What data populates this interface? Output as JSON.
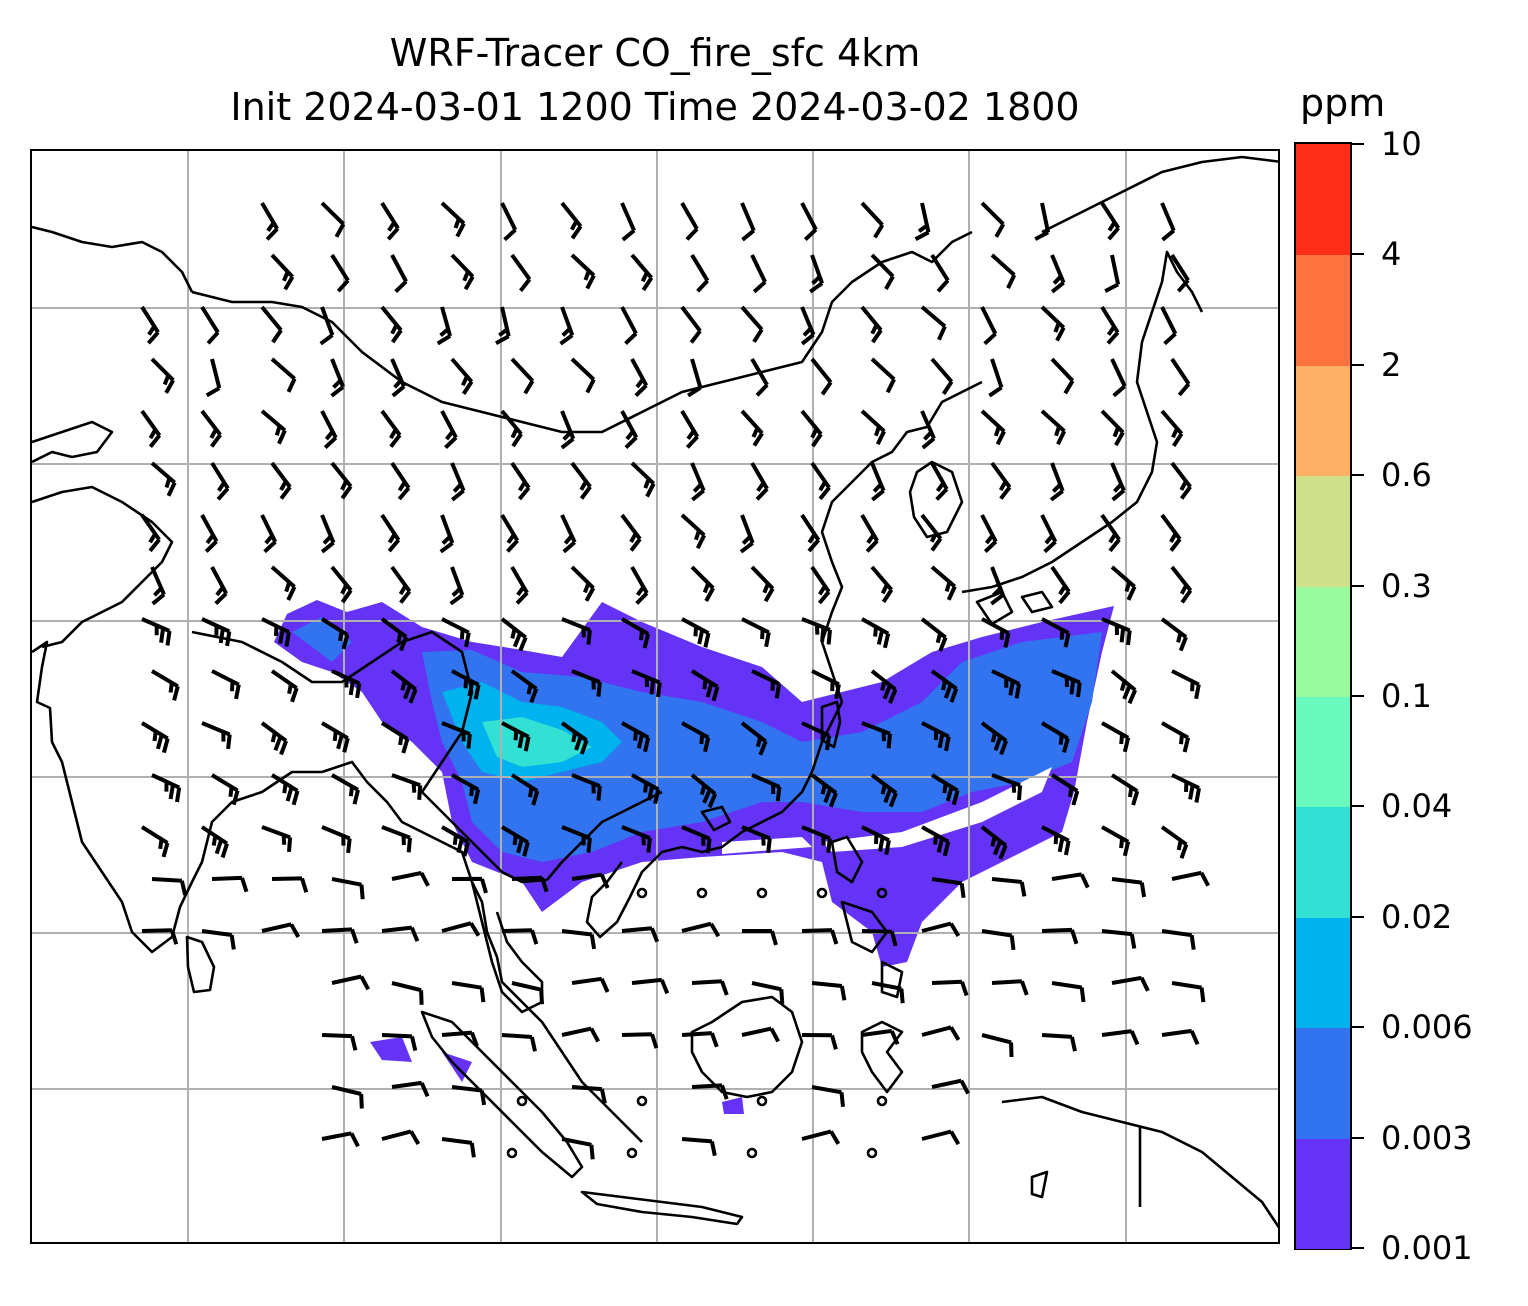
{
  "title": {
    "line1": "WRF-Tracer CO_fire_sfc 4km",
    "line2": "Init 2024-03-01 1200 Time 2024-03-02 1800"
  },
  "colorbar": {
    "unit": "ppm",
    "levels": [
      "0.001",
      "0.003",
      "0.006",
      "0.02",
      "0.04",
      "0.1",
      "0.3",
      "0.6",
      "2",
      "4",
      "10"
    ],
    "colors": [
      "#6433f5",
      "#3273ef",
      "#00b2ee",
      "#33e0d4",
      "#6afabf",
      "#99fa9d",
      "#cee18a",
      "#feb066",
      "#fe7240",
      "#ff2e1a"
    ]
  },
  "map": {
    "grid": "on",
    "grid_color": "#b0b0b0",
    "coastline_color": "#000000",
    "features": [
      "coastlines",
      "country-borders",
      "gridlines",
      "wind-barbs",
      "co-fire-contours"
    ]
  }
}
